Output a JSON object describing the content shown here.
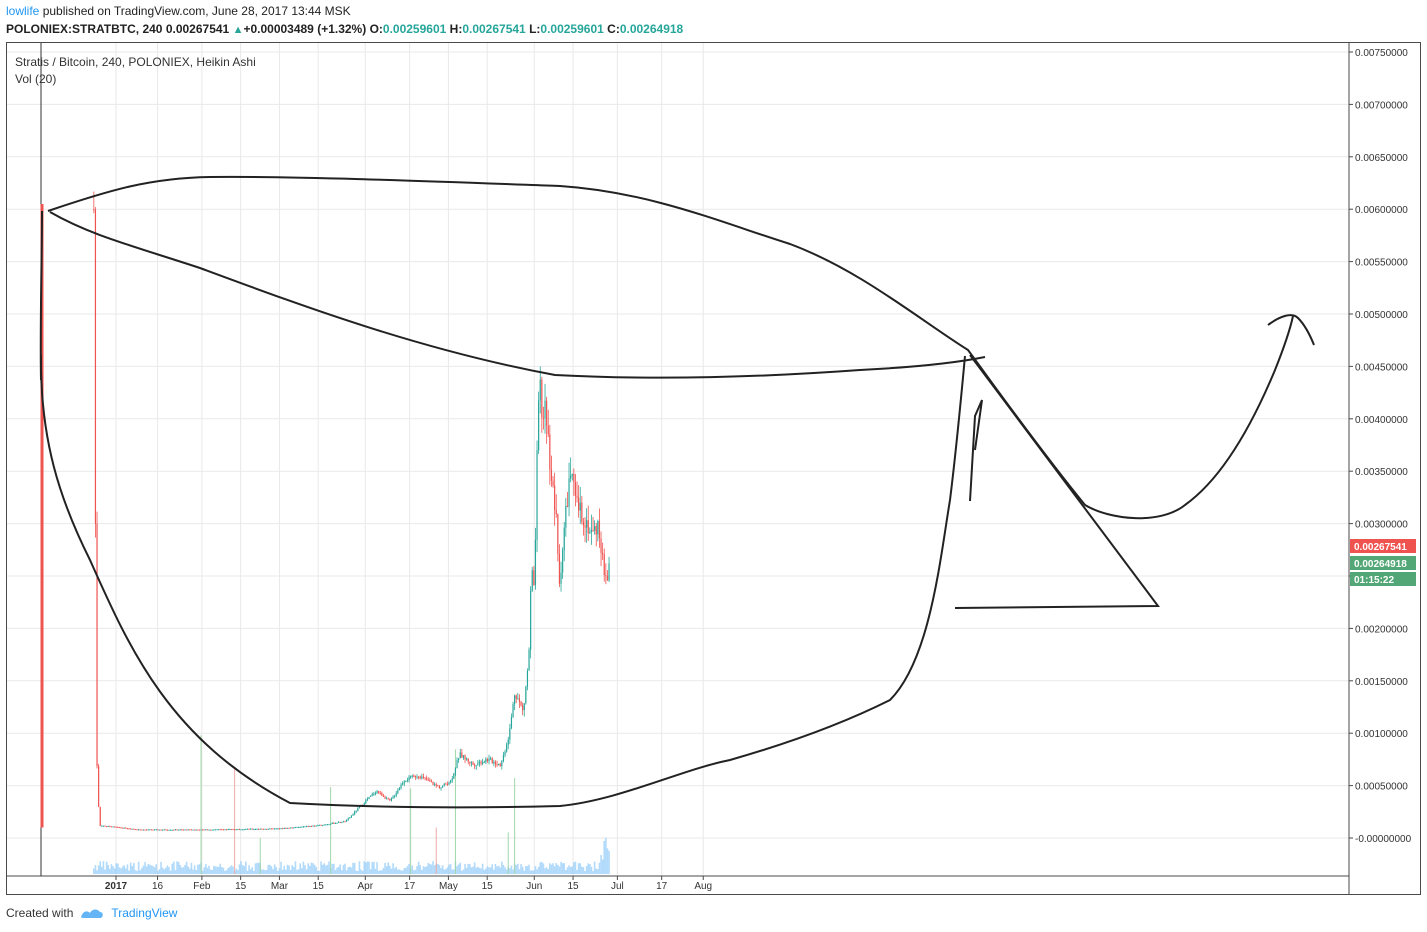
{
  "header": {
    "user": "lowlife",
    "published": "published on TradingView.com, June 28, 2017 13:44 MSK"
  },
  "quote": {
    "symbol": "POLONIEX:STRATBTC, 240",
    "last": "0.00267541",
    "change": "+0.00003489 (+1.32%)",
    "o_label": "O:",
    "o": "0.00259601",
    "h_label": "H:",
    "h": "0.00267541",
    "l_label": "L:",
    "l": "0.00259601",
    "c_label": "C:",
    "c": "0.00264918"
  },
  "legend": {
    "series": "Stratis / Bitcoin, 240, POLONIEX, Heikin Ashi",
    "volume": "Vol (20)"
  },
  "price_tags": {
    "high": "0.00267541",
    "close": "0.00264918",
    "countdown": "01:15:22"
  },
  "footer": {
    "created_with": "Created with",
    "brand": "TradingView"
  },
  "colors": {
    "up": "#26a69a",
    "down": "#ef5350",
    "volume": "#90caf9",
    "tag_red": "#ef5350",
    "tag_green": "#53a776",
    "drawing": "#222222"
  },
  "chart_data": {
    "type": "line",
    "title": "Stratis / Bitcoin, 240, POLONIEX, Heikin Ashi",
    "x_ticks": [
      "2017",
      "16",
      "Feb",
      "15",
      "Mar",
      "15",
      "Apr",
      "17",
      "May",
      "15",
      "Jun",
      "15",
      "Jul",
      "17",
      "Aug"
    ],
    "y_ticks": [
      "0.00750000",
      "0.00700000",
      "0.00650000",
      "0.00600000",
      "0.00550000",
      "0.00500000",
      "0.00450000",
      "0.00400000",
      "0.00350000",
      "0.00300000",
      "0.00250000",
      "0.00200000",
      "0.00150000",
      "0.00100000",
      "0.00050000",
      "-0.00000000"
    ],
    "ylim": [
      -0.0003,
      0.0077
    ],
    "grid": true,
    "series": [
      {
        "values": [
          [
            "2016-12-24",
            0.006
          ],
          [
            "2016-12-25",
            0.0008
          ],
          [
            "2016-12-26",
            0.00012
          ],
          [
            "2017-01-10",
            8e-05
          ],
          [
            "2017-02-01",
            8e-05
          ],
          [
            "2017-03-01",
            9e-05
          ],
          [
            "2017-03-15",
            0.00012
          ],
          [
            "2017-03-25",
            0.00016
          ],
          [
            "2017-04-01",
            0.00035
          ],
          [
            "2017-04-05",
            0.00045
          ],
          [
            "2017-04-10",
            0.00035
          ],
          [
            "2017-04-15",
            0.00055
          ],
          [
            "2017-04-20",
            0.0006
          ],
          [
            "2017-04-28",
            0.00048
          ],
          [
            "2017-05-02",
            0.00055
          ],
          [
            "2017-05-05",
            0.0008
          ],
          [
            "2017-05-10",
            0.0007
          ],
          [
            "2017-05-15",
            0.00075
          ],
          [
            "2017-05-20",
            0.0007
          ],
          [
            "2017-05-23",
            0.001
          ],
          [
            "2017-05-25",
            0.0014
          ],
          [
            "2017-05-28",
            0.0012
          ],
          [
            "2017-05-30",
            0.0017
          ],
          [
            "2017-05-31",
            0.0026
          ],
          [
            "2017-06-01",
            0.0023
          ],
          [
            "2017-06-02",
            0.0036
          ],
          [
            "2017-06-03",
            0.0044
          ],
          [
            "2017-06-04",
            0.0039
          ],
          [
            "2017-06-05",
            0.0042
          ],
          [
            "2017-06-06",
            0.0038
          ],
          [
            "2017-06-07",
            0.0035
          ],
          [
            "2017-06-09",
            0.003
          ],
          [
            "2017-06-10",
            0.0024
          ],
          [
            "2017-06-12",
            0.003
          ],
          [
            "2017-06-14",
            0.0035
          ],
          [
            "2017-06-16",
            0.0032
          ],
          [
            "2017-06-18",
            0.0031
          ],
          [
            "2017-06-20",
            0.003
          ],
          [
            "2017-06-22",
            0.0029
          ],
          [
            "2017-06-24",
            0.003
          ],
          [
            "2017-06-26",
            0.0026
          ],
          [
            "2017-06-27",
            0.0024
          ],
          [
            "2017-06-28",
            0.00265
          ]
        ]
      }
    ]
  }
}
